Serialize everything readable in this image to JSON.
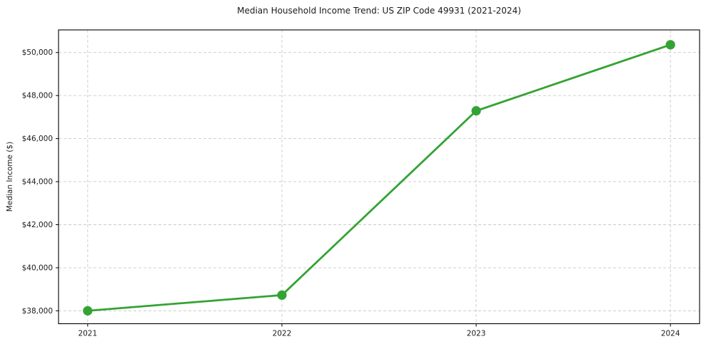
{
  "chart_data": {
    "type": "line",
    "title": "Median Household Income Trend: US ZIP Code 49931 (2021-2024)",
    "xlabel": "",
    "ylabel": "Median Income ($)",
    "x_tick_labels": [
      "2021",
      "2022",
      "2023",
      "2024"
    ],
    "x": [
      2021,
      2022,
      2023,
      2024
    ],
    "series": [
      {
        "values": [
          38000,
          38730,
          47290,
          50360
        ]
      }
    ],
    "y_ticks": {
      "values": [
        38000,
        40000,
        42000,
        44000,
        46000,
        48000,
        50000
      ],
      "labels": [
        "$38,000",
        "$40,000",
        "$42,000",
        "$44,000",
        "$46,000",
        "$48,000",
        "$50,000"
      ]
    },
    "ylim": [
      37400,
      51050
    ],
    "grid": "both-dashed",
    "legend": "none",
    "line_color": "#33a333",
    "grid_color": "#c9c9c9",
    "spine_color": "#000000",
    "text_color": "#1a1a1a"
  }
}
